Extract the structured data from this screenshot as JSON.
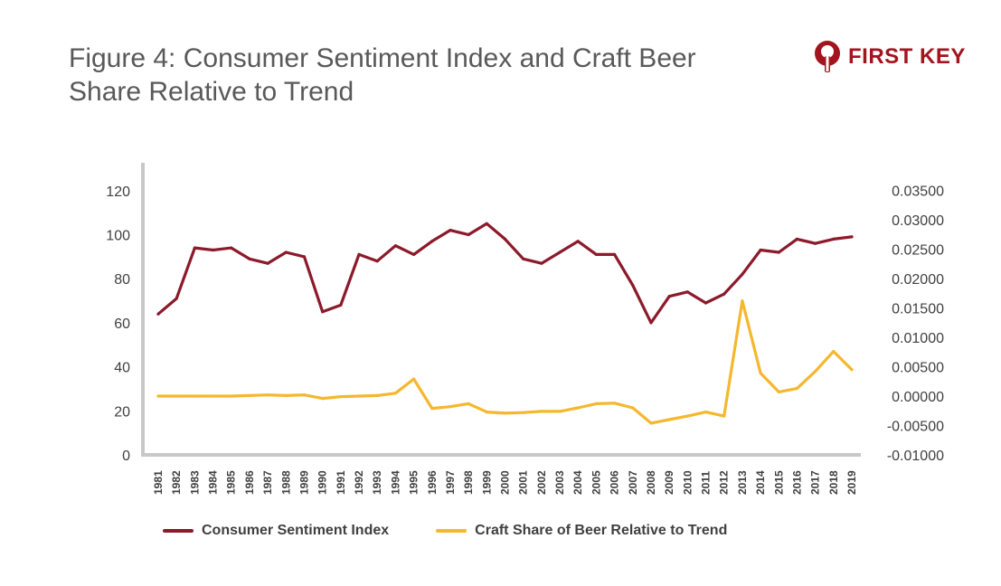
{
  "header": {
    "title": "Figure 4: Consumer Sentiment Index and Craft Beer Share Relative to Trend",
    "brand_text": "FIRST KEY",
    "brand_icon": "first-key-logo-icon",
    "brand_color": "#a3141e"
  },
  "chart_data": {
    "type": "line",
    "categories": [
      "1981",
      "1982",
      "1983",
      "1984",
      "1985",
      "1986",
      "1987",
      "1988",
      "1989",
      "1990",
      "1991",
      "1992",
      "1993",
      "1994",
      "1995",
      "1996",
      "1997",
      "1998",
      "1999",
      "2000",
      "2001",
      "2002",
      "2003",
      "2004",
      "2005",
      "2006",
      "2007",
      "2008",
      "2009",
      "2010",
      "2011",
      "2012",
      "2013",
      "2014",
      "2015",
      "2016",
      "2017",
      "2018",
      "2019"
    ],
    "series": [
      {
        "name": "Consumer Sentiment Index",
        "axis": "left",
        "color": "#8b1a2b",
        "values": [
          64,
          71,
          94,
          93,
          94,
          89,
          87,
          92,
          90,
          65,
          68,
          91,
          88,
          95,
          91,
          97,
          102,
          100,
          105,
          98,
          89,
          87,
          92,
          97,
          91,
          91,
          77,
          60,
          72,
          74,
          69,
          73,
          82,
          93,
          92,
          98,
          96,
          98,
          99
        ]
      },
      {
        "name": "Craft Share of Beer Relative to Trend",
        "axis": "right",
        "color": "#f5b72e",
        "values": [
          0.0,
          0.0,
          0.0,
          0.0,
          0.0,
          0.0001,
          0.0002,
          0.0001,
          0.0002,
          -0.0004,
          -0.0001,
          0.0,
          0.0001,
          0.0005,
          0.0029,
          -0.0021,
          -0.0018,
          -0.0013,
          -0.0027,
          -0.0029,
          -0.0028,
          -0.0026,
          -0.0026,
          -0.002,
          -0.0013,
          -0.0012,
          -0.002,
          -0.0046,
          -0.004,
          -0.0034,
          -0.0027,
          -0.0034,
          0.0162,
          0.0039,
          0.0007,
          0.0013,
          0.0042,
          0.0076,
          0.0045
        ]
      }
    ],
    "y_left": {
      "min": 0,
      "max": 130,
      "ticks": [
        "0",
        "20",
        "40",
        "60",
        "80",
        "100",
        "120"
      ],
      "tick_values": [
        0,
        20,
        40,
        60,
        80,
        100,
        120
      ]
    },
    "y_right": {
      "min": -0.01,
      "max": 0.035,
      "ticks": [
        "-0.01000",
        "-0.00500",
        "0.00000",
        "0.00500",
        "0.01000",
        "0.01500",
        "0.02000",
        "0.02500",
        "0.03000",
        "0.03500"
      ],
      "tick_values": [
        -0.01,
        -0.005,
        0,
        0.005,
        0.01,
        0.015,
        0.02,
        0.025,
        0.03,
        0.035
      ]
    },
    "grid": false,
    "legend_position": "bottom"
  }
}
